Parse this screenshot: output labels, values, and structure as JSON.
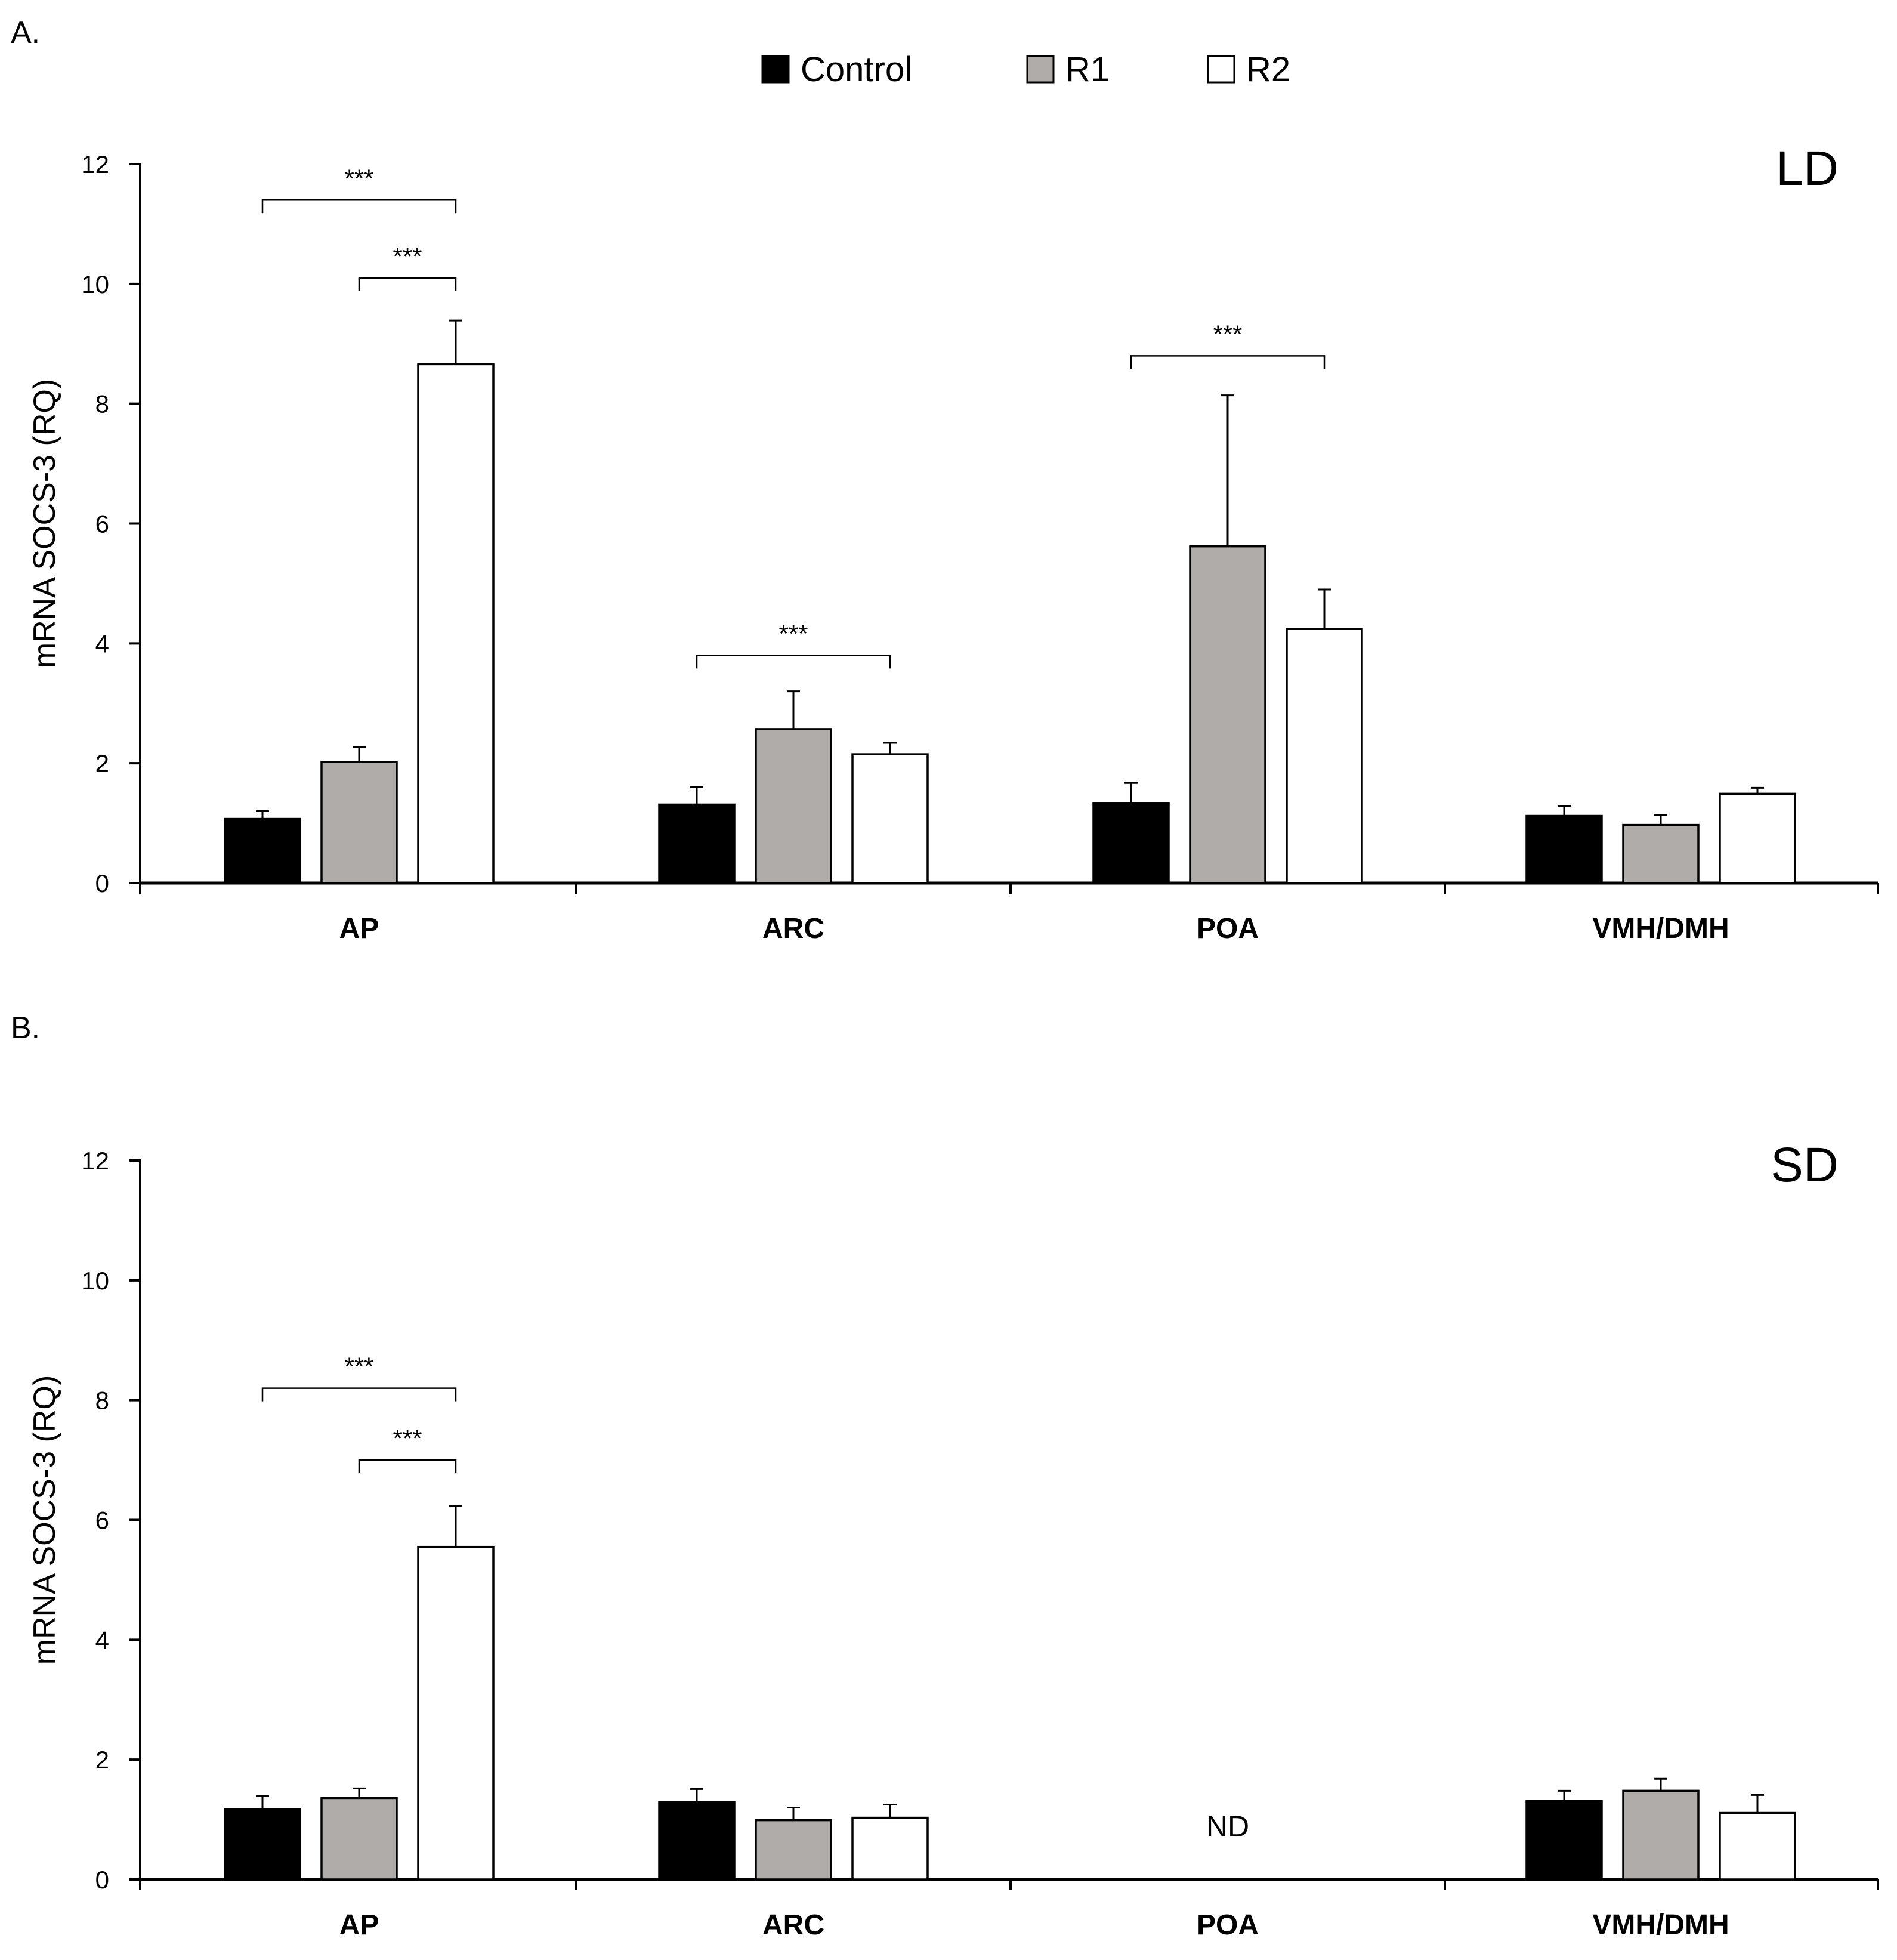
{
  "legend": {
    "entries": [
      {
        "label": "Control",
        "color": "#000000"
      },
      {
        "label": "R1",
        "color": "#b0acaa"
      },
      {
        "label": "R2",
        "color": "#ffffff"
      }
    ]
  },
  "chart_data": [
    {
      "panel": "A.",
      "type": "bar",
      "condition": "LD",
      "ylabel": "mRNA SOCS-3 (RQ)",
      "xlabel": "",
      "ylim": [
        0,
        12
      ],
      "yticks": [
        0,
        2,
        4,
        6,
        8,
        10,
        12
      ],
      "categories": [
        "AP",
        "ARC",
        "POA",
        "VMH/DMH"
      ],
      "series": [
        {
          "name": "Control",
          "values": [
            1.07,
            1.31,
            1.33,
            1.12
          ],
          "errors": [
            0.13,
            0.29,
            0.34,
            0.16
          ]
        },
        {
          "name": "R1",
          "values": [
            2.02,
            2.57,
            5.62,
            0.97
          ],
          "errors": [
            0.25,
            0.63,
            2.52,
            0.16
          ]
        },
        {
          "name": "R2",
          "values": [
            8.66,
            2.15,
            4.24,
            1.49
          ],
          "errors": [
            0.73,
            0.19,
            0.66,
            0.1
          ]
        }
      ],
      "annotations": [
        {
          "text": "***",
          "category": 0,
          "from": "Control",
          "to": "R2",
          "level": 11.4
        },
        {
          "text": "***",
          "category": 0,
          "from": "R1",
          "to": "R2",
          "level": 10.1
        },
        {
          "text": "***",
          "category": 1,
          "from": "Control",
          "to": "R2",
          "level": 3.8
        },
        {
          "text": "***",
          "category": 2,
          "from": "Control",
          "to": "R2",
          "level": 8.8
        }
      ],
      "missing": []
    },
    {
      "panel": "B.",
      "type": "bar",
      "condition": "SD",
      "ylabel": "mRNA SOCS-3 (RQ)",
      "xlabel": "",
      "ylim": [
        0,
        12
      ],
      "yticks": [
        0,
        2,
        4,
        6,
        8,
        10,
        12
      ],
      "categories": [
        "AP",
        "ARC",
        "POA",
        "VMH/DMH"
      ],
      "series": [
        {
          "name": "Control",
          "values": [
            1.17,
            1.29,
            null,
            1.31
          ],
          "errors": [
            0.22,
            0.22,
            null,
            0.17
          ]
        },
        {
          "name": "R1",
          "values": [
            1.36,
            0.99,
            null,
            1.48
          ],
          "errors": [
            0.16,
            0.21,
            null,
            0.2
          ]
        },
        {
          "name": "R2",
          "values": [
            5.55,
            1.03,
            null,
            1.11
          ],
          "errors": [
            0.68,
            0.22,
            null,
            0.3
          ]
        }
      ],
      "annotations": [
        {
          "text": "***",
          "category": 0,
          "from": "Control",
          "to": "R2",
          "level": 8.2
        },
        {
          "text": "***",
          "category": 0,
          "from": "R1",
          "to": "R2",
          "level": 7.0
        }
      ],
      "missing": [
        {
          "category": 2,
          "text": "ND"
        }
      ]
    }
  ]
}
